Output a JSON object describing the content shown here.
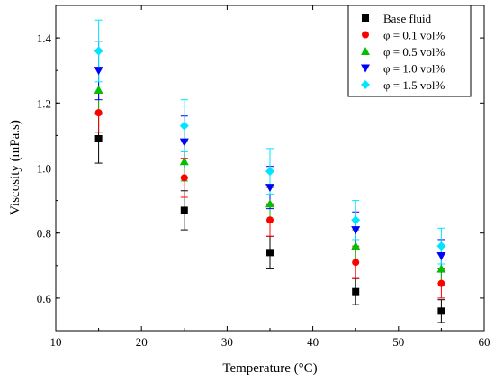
{
  "chart_data": {
    "type": "scatter",
    "title": "",
    "xlabel": "Temperature (°C)",
    "ylabel": "Viscosity (mPa.s)",
    "xlim": [
      10,
      60
    ],
    "ylim": [
      0.5,
      1.5
    ],
    "xticks": [
      "10",
      "20",
      "30",
      "40",
      "50",
      "60"
    ],
    "yticks": [
      "0.6",
      "0.8",
      "1.0",
      "1.2",
      "1.4"
    ],
    "grid": false,
    "legend_position": "top-right",
    "x": [
      15,
      25,
      35,
      45,
      55
    ],
    "series": [
      {
        "name": "Base fluid",
        "marker": "square",
        "color": "#000000",
        "values": [
          1.09,
          0.87,
          0.74,
          0.62,
          0.56
        ],
        "errors": [
          0.075,
          0.06,
          0.05,
          0.04,
          0.035
        ]
      },
      {
        "name": "φ = 0.1 vol%",
        "marker": "circle",
        "color": "#ff0000",
        "values": [
          1.17,
          0.97,
          0.84,
          0.71,
          0.645
        ],
        "errors": [
          0.06,
          0.06,
          0.05,
          0.05,
          0.045
        ]
      },
      {
        "name": "φ = 0.5 vol%",
        "marker": "triangle-up",
        "color": "#00c000",
        "values": [
          1.24,
          1.02,
          0.89,
          0.76,
          0.69
        ],
        "errors": [
          0.07,
          0.06,
          0.05,
          0.05,
          0.045
        ]
      },
      {
        "name": "φ = 1.0 vol%",
        "marker": "triangle-down",
        "color": "#0000ff",
        "values": [
          1.3,
          1.08,
          0.94,
          0.81,
          0.73
        ],
        "errors": [
          0.09,
          0.08,
          0.065,
          0.055,
          0.05
        ]
      },
      {
        "name": "φ = 1.5 vol%",
        "marker": "diamond",
        "color": "#00e5ff",
        "values": [
          1.36,
          1.13,
          0.99,
          0.84,
          0.76
        ],
        "errors": [
          0.095,
          0.08,
          0.07,
          0.06,
          0.055
        ]
      }
    ]
  }
}
